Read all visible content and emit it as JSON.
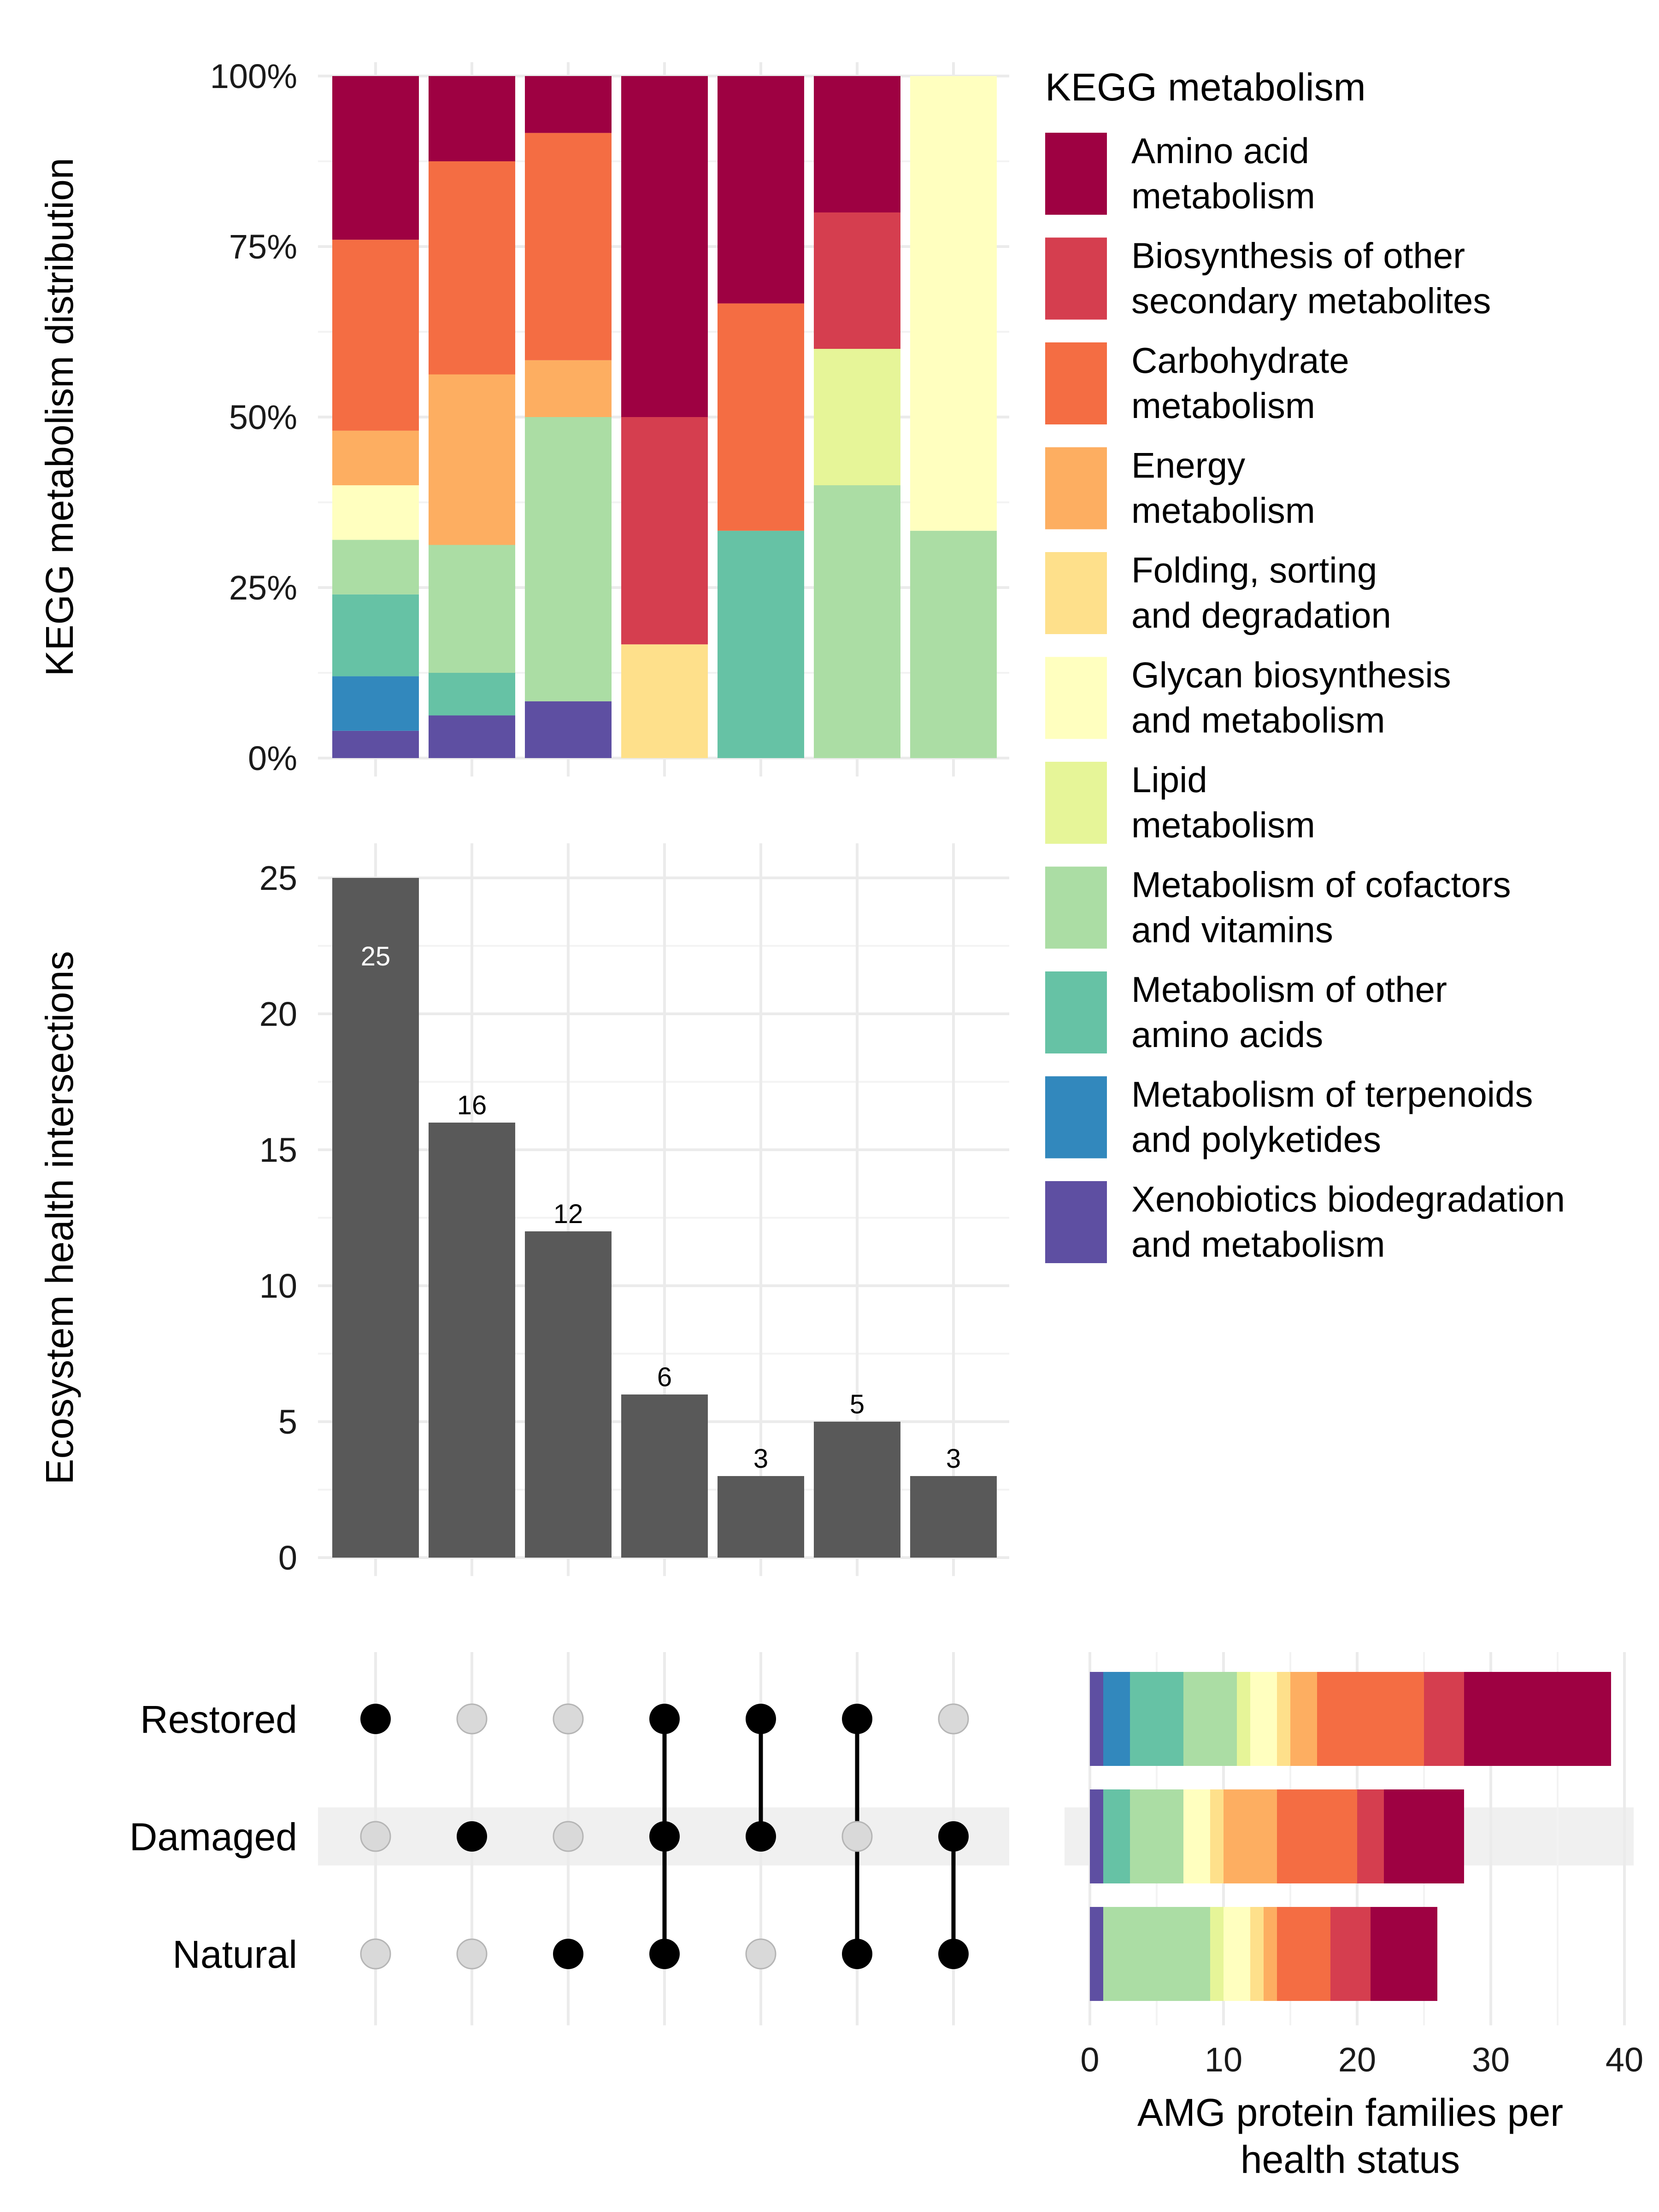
{
  "colors": {
    "Amino acid metabolism": "#9E0142",
    "Biosynthesis of other secondary metabolites": "#D53E4F",
    "Carbohydrate metabolism": "#F46D43",
    "Energy metabolism": "#FDAE61",
    "Folding, sorting and degradation": "#FEE08B",
    "Glycan biosynthesis and metabolism": "#FFFFBF",
    "Lipid metabolism": "#E6F598",
    "Metabolism of cofactors and vitamins": "#ABDDA4",
    "Metabolism of other amino acids": "#66C2A5",
    "Metabolism of terpenoids and polyketides": "#3288BD",
    "Xenobiotics biodegradation and metabolism": "#5E4FA2"
  },
  "chart_data": [
    {
      "type": "bar",
      "stacked": "percent",
      "ylabel": "KEGG metabolism distribution",
      "yticks": [
        "0%",
        "25%",
        "50%",
        "75%",
        "100%"
      ],
      "ylim": [
        0,
        1
      ],
      "grid": true,
      "legend": {
        "title": "KEGG metabolism",
        "placement": "right",
        "entries": [
          {
            "key": "Amino acid metabolism",
            "lines": [
              "Amino acid",
              "metabolism"
            ]
          },
          {
            "key": "Biosynthesis of other secondary metabolites",
            "lines": [
              "Biosynthesis of other",
              "secondary metabolites"
            ]
          },
          {
            "key": "Carbohydrate metabolism",
            "lines": [
              "Carbohydrate",
              "metabolism"
            ]
          },
          {
            "key": "Energy metabolism",
            "lines": [
              "Energy",
              "metabolism"
            ]
          },
          {
            "key": "Folding, sorting and degradation",
            "lines": [
              "Folding, sorting",
              "and degradation"
            ]
          },
          {
            "key": "Glycan biosynthesis and metabolism",
            "lines": [
              "Glycan biosynthesis",
              "and metabolism"
            ]
          },
          {
            "key": "Lipid metabolism",
            "lines": [
              "Lipid",
              "metabolism"
            ]
          },
          {
            "key": "Metabolism of cofactors and vitamins",
            "lines": [
              "Metabolism of cofactors",
              "and vitamins"
            ]
          },
          {
            "key": "Metabolism of other amino acids",
            "lines": [
              "Metabolism of other",
              "amino acids"
            ]
          },
          {
            "key": "Metabolism of terpenoids and polyketides",
            "lines": [
              "Metabolism of terpenoids",
              "and polyketides"
            ]
          },
          {
            "key": "Xenobiotics biodegradation and metabolism",
            "lines": [
              "Xenobiotics biodegradation",
              "and metabolism"
            ]
          }
        ]
      },
      "columns": [
        [
          {
            "category": "Xenobiotics biodegradation and metabolism",
            "fraction": 0.04
          },
          {
            "category": "Metabolism of terpenoids and polyketides",
            "fraction": 0.08
          },
          {
            "category": "Metabolism of other amino acids",
            "fraction": 0.12
          },
          {
            "category": "Metabolism of cofactors and vitamins",
            "fraction": 0.08
          },
          {
            "category": "Glycan biosynthesis and metabolism",
            "fraction": 0.08
          },
          {
            "category": "Energy metabolism",
            "fraction": 0.08
          },
          {
            "category": "Carbohydrate metabolism",
            "fraction": 0.28
          },
          {
            "category": "Amino acid metabolism",
            "fraction": 0.24
          }
        ],
        [
          {
            "category": "Xenobiotics biodegradation and metabolism",
            "fraction": 0.0625
          },
          {
            "category": "Metabolism of other amino acids",
            "fraction": 0.0625
          },
          {
            "category": "Metabolism of cofactors and vitamins",
            "fraction": 0.1875
          },
          {
            "category": "Energy metabolism",
            "fraction": 0.25
          },
          {
            "category": "Carbohydrate metabolism",
            "fraction": 0.3125
          },
          {
            "category": "Amino acid metabolism",
            "fraction": 0.125
          }
        ],
        [
          {
            "category": "Xenobiotics biodegradation and metabolism",
            "fraction": 0.0833
          },
          {
            "category": "Metabolism of cofactors and vitamins",
            "fraction": 0.4167
          },
          {
            "category": "Energy metabolism",
            "fraction": 0.0833
          },
          {
            "category": "Carbohydrate metabolism",
            "fraction": 0.3333
          },
          {
            "category": "Amino acid metabolism",
            "fraction": 0.0834
          }
        ],
        [
          {
            "category": "Folding, sorting and degradation",
            "fraction": 0.1667
          },
          {
            "category": "Biosynthesis of other secondary metabolites",
            "fraction": 0.3333
          },
          {
            "category": "Amino acid metabolism",
            "fraction": 0.5
          }
        ],
        [
          {
            "category": "Metabolism of other amino acids",
            "fraction": 0.3333
          },
          {
            "category": "Carbohydrate metabolism",
            "fraction": 0.3333
          },
          {
            "category": "Amino acid metabolism",
            "fraction": 0.3334
          }
        ],
        [
          {
            "category": "Metabolism of cofactors and vitamins",
            "fraction": 0.4
          },
          {
            "category": "Lipid metabolism",
            "fraction": 0.2
          },
          {
            "category": "Biosynthesis of other secondary metabolites",
            "fraction": 0.2
          },
          {
            "category": "Amino acid metabolism",
            "fraction": 0.2
          }
        ],
        [
          {
            "category": "Metabolism of cofactors and vitamins",
            "fraction": 0.3333
          },
          {
            "category": "Glycan biosynthesis and metabolism",
            "fraction": 0.6667
          }
        ]
      ]
    },
    {
      "type": "bar",
      "ylabel": "Ecosystem health intersections",
      "yticks": [
        0,
        5,
        10,
        15,
        20,
        25
      ],
      "ylim": [
        0,
        25
      ],
      "grid": true,
      "values": [
        25,
        16,
        12,
        6,
        3,
        5,
        3
      ],
      "value_labels": [
        "25",
        "16",
        "12",
        "6",
        "3",
        "5",
        "3"
      ],
      "bar_color": "#595959"
    },
    {
      "type": "matrix",
      "sets": [
        "Restored",
        "Damaged",
        "Natural"
      ],
      "membership": [
        [
          1,
          0,
          0
        ],
        [
          0,
          1,
          0
        ],
        [
          0,
          0,
          1
        ],
        [
          1,
          1,
          1
        ],
        [
          1,
          1,
          0
        ],
        [
          1,
          0,
          1
        ],
        [
          0,
          1,
          1
        ]
      ],
      "active_color": "#000000",
      "inactive_color": "#d9d9d9"
    },
    {
      "type": "bar",
      "orientation": "horizontal",
      "stacked": true,
      "xlabel": "AMG protein families per health status",
      "xticks": [
        0,
        10,
        20,
        30,
        40
      ],
      "xlim": [
        0,
        41
      ],
      "grid": true,
      "rows": [
        {
          "set": "Restored",
          "segments": [
            {
              "category": "Xenobiotics biodegradation and metabolism",
              "value": 1
            },
            {
              "category": "Metabolism of terpenoids and polyketides",
              "value": 2
            },
            {
              "category": "Metabolism of other amino acids",
              "value": 4
            },
            {
              "category": "Metabolism of cofactors and vitamins",
              "value": 4
            },
            {
              "category": "Lipid metabolism",
              "value": 1
            },
            {
              "category": "Glycan biosynthesis and metabolism",
              "value": 2
            },
            {
              "category": "Folding, sorting and degradation",
              "value": 1
            },
            {
              "category": "Energy metabolism",
              "value": 2
            },
            {
              "category": "Carbohydrate metabolism",
              "value": 8
            },
            {
              "category": "Biosynthesis of other secondary metabolites",
              "value": 3
            },
            {
              "category": "Amino acid metabolism",
              "value": 11
            }
          ]
        },
        {
          "set": "Damaged",
          "segments": [
            {
              "category": "Xenobiotics biodegradation and metabolism",
              "value": 1
            },
            {
              "category": "Metabolism of other amino acids",
              "value": 2
            },
            {
              "category": "Metabolism of cofactors and vitamins",
              "value": 4
            },
            {
              "category": "Glycan biosynthesis and metabolism",
              "value": 2
            },
            {
              "category": "Folding, sorting and degradation",
              "value": 1
            },
            {
              "category": "Energy metabolism",
              "value": 4
            },
            {
              "category": "Carbohydrate metabolism",
              "value": 6
            },
            {
              "category": "Biosynthesis of other secondary metabolites",
              "value": 2
            },
            {
              "category": "Amino acid metabolism",
              "value": 6
            }
          ]
        },
        {
          "set": "Natural",
          "segments": [
            {
              "category": "Xenobiotics biodegradation and metabolism",
              "value": 1
            },
            {
              "category": "Metabolism of cofactors and vitamins",
              "value": 8
            },
            {
              "category": "Lipid metabolism",
              "value": 1
            },
            {
              "category": "Glycan biosynthesis and metabolism",
              "value": 2
            },
            {
              "category": "Folding, sorting and degradation",
              "value": 1
            },
            {
              "category": "Energy metabolism",
              "value": 1
            },
            {
              "category": "Carbohydrate metabolism",
              "value": 4
            },
            {
              "category": "Biosynthesis of other secondary metabolites",
              "value": 3
            },
            {
              "category": "Amino acid metabolism",
              "value": 5
            }
          ]
        }
      ]
    }
  ]
}
